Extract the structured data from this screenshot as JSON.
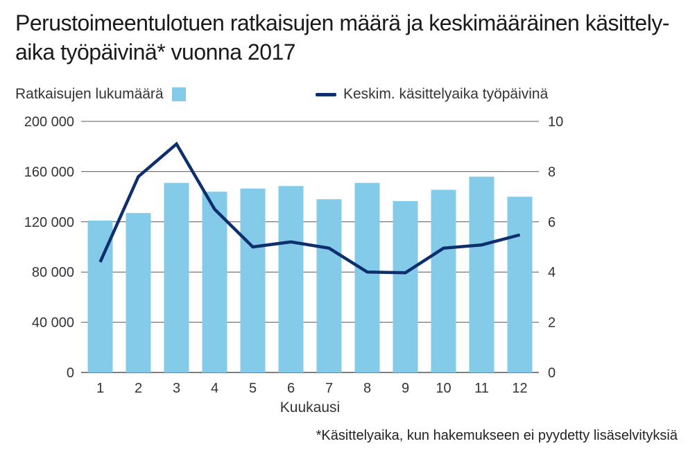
{
  "title": "Perustoimeentulotuen ratkaisujen määrä ja keskimääräinen käsittely-aika työpäivinä* vuonna 2017",
  "legend": {
    "bars": "Ratkaisujen lukumäärä",
    "line": "Keskim. käsittelyaika työpäivinä"
  },
  "footnote": "*Käsittelyaika, kun hakemukseen ei pyydetty lisäselvityksiä",
  "colors": {
    "bars": "#84cbe9",
    "line": "#0d2f6e",
    "grid": "#555555"
  },
  "chart_data": {
    "type": "bar",
    "title": "Perustoimeentulotuen ratkaisujen määrä ja keskimääräinen käsittely-aika työpäivinä* vuonna 2017",
    "xlabel": "Kuukausi",
    "categories": [
      "1",
      "2",
      "3",
      "4",
      "5",
      "6",
      "7",
      "8",
      "9",
      "10",
      "11",
      "12"
    ],
    "series": [
      {
        "name": "Ratkaisujen lukumäärä",
        "type": "bar",
        "axis": "left",
        "values": [
          121000,
          127000,
          151000,
          144000,
          146500,
          148500,
          138000,
          151000,
          136500,
          145500,
          156000,
          140000
        ]
      },
      {
        "name": "Keskim. käsittelyaika työpäivinä",
        "type": "line",
        "axis": "right",
        "values": [
          4.4,
          7.8,
          9.1,
          6.5,
          5.0,
          5.2,
          4.95,
          4.0,
          3.97,
          4.95,
          5.08,
          5.48
        ]
      }
    ],
    "y_left": {
      "ylim": [
        0,
        200000
      ],
      "ticks": [
        0,
        40000,
        80000,
        120000,
        160000,
        200000
      ],
      "tick_labels": [
        "0",
        "40 000",
        "80 000",
        "120 000",
        "160 000",
        "200 000"
      ]
    },
    "y_right": {
      "ylim": [
        0,
        10
      ],
      "ticks": [
        0,
        2,
        4,
        6,
        8,
        10
      ],
      "tick_labels": [
        "0",
        "2",
        "4",
        "6",
        "8",
        "10"
      ]
    },
    "grid": true,
    "legend_position": "top"
  }
}
